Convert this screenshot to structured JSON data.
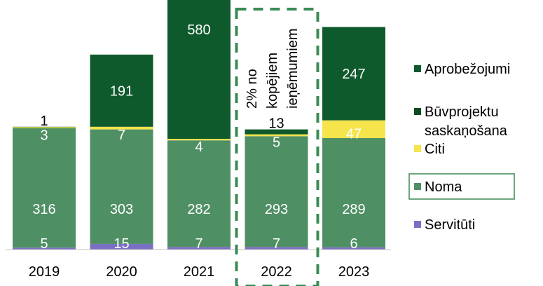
{
  "chart_data": {
    "type": "bar",
    "stacked": true,
    "categories": [
      "2019",
      "2020",
      "2021",
      "2022",
      "2023"
    ],
    "series": [
      {
        "name": "Servitūti",
        "color": "#7b6fc4",
        "values": [
          5,
          15,
          7,
          7,
          6
        ]
      },
      {
        "name": "Noma",
        "color": "#4f8f64",
        "values": [
          316,
          303,
          282,
          293,
          289
        ]
      },
      {
        "name": "Citi",
        "color": "#f5e44c",
        "values": [
          3,
          7,
          4,
          5,
          47
        ]
      },
      {
        "name": "Būvprojektu saskaņošana",
        "color": "#0f4a21",
        "values": [
          0,
          0,
          0,
          0,
          0
        ]
      },
      {
        "name": "Aprobežojumi",
        "color": "#0f5a2c",
        "values": [
          1,
          191,
          580,
          13,
          247
        ]
      }
    ],
    "data_labels": [
      {
        "category": "2019",
        "labels": {
          "Servitūti": "5",
          "Noma": "316",
          "Citi": "3",
          "Aprobežojumi": "1"
        }
      },
      {
        "category": "2020",
        "labels": {
          "Servitūti": "15",
          "Noma": "303",
          "Citi": "7",
          "Aprobežojumi": "191"
        }
      },
      {
        "category": "2021",
        "labels": {
          "Servitūti": "7",
          "Noma": "282",
          "Citi": "4",
          "Aprobežojumi": "580"
        }
      },
      {
        "category": "2022",
        "labels": {
          "Servitūti": "7",
          "Noma": "293",
          "Citi": "5",
          "Aprobežojumi": "13"
        }
      },
      {
        "category": "2023",
        "labels": {
          "Servitūti": "6",
          "Noma": "289",
          "Citi": "47",
          "Aprobežojumi": "247"
        }
      }
    ],
    "annotation": {
      "category": "2022",
      "lines": [
        "2% no",
        "kopējiem",
        "ieņēmumiem"
      ],
      "style": "dashed-box",
      "color": "#3a8a55"
    },
    "legend": {
      "placement": "right",
      "items": [
        {
          "label": "Aprobežojumi",
          "color": "#0f5a2c"
        },
        {
          "label": "Būvprojektu saskaņošana",
          "lines": [
            "Būvprojektu",
            "saskaņošana"
          ],
          "color": "#0f4a21"
        },
        {
          "label": "Citi",
          "color": "#f5e44c"
        },
        {
          "label": "Noma",
          "color": "#4f8f64",
          "boxed": true
        },
        {
          "label": "Servitūti",
          "color": "#7b6fc4"
        }
      ]
    },
    "title": "",
    "xlabel": "",
    "ylabel": "",
    "ylim": [
      0,
      900
    ],
    "grid": false
  }
}
